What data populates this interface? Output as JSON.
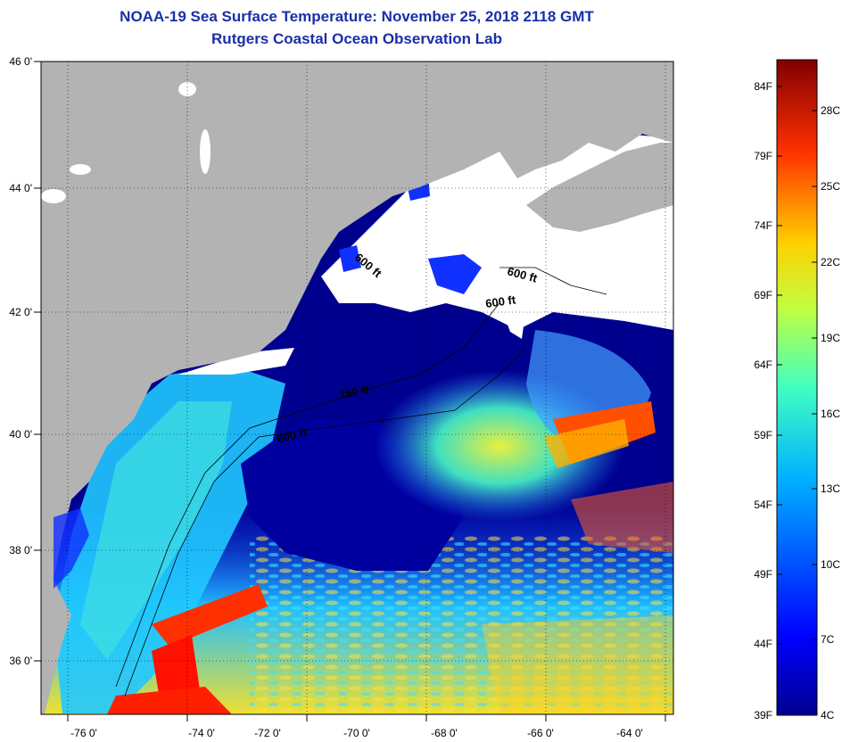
{
  "header": {
    "title": "NOAA-19 Sea Surface Temperature:  November 25, 2018 2118 GMT",
    "subtitle": "Rutgers Coastal Ocean Observation Lab"
  },
  "map": {
    "lon_ticks": [
      "-76 0'",
      "-74 0'",
      "-72 0'",
      "-70 0'",
      "-68 0'",
      "-66 0'",
      "-64 0'"
    ],
    "lat_ticks": [
      "46 0'",
      "44 0'",
      "42 0'",
      "40 0'",
      "38 0'",
      "36 0'"
    ],
    "contour_labels": [
      "600 ft",
      "600 ft",
      "600 ft",
      "150 ft",
      "600 ft"
    ],
    "colors": {
      "land": "#b3b3b3",
      "cloud": "#ffffff",
      "cold": "#00008f",
      "warm": "#ff2000"
    }
  },
  "colorbar": {
    "fahrenheit": [
      "84F",
      "79F",
      "74F",
      "69F",
      "64F",
      "59F",
      "54F",
      "49F",
      "44F",
      "39F"
    ],
    "celsius": [
      "28C",
      "25C",
      "22C",
      "19C",
      "16C",
      "13C",
      "10C",
      "7C",
      "4C"
    ]
  }
}
